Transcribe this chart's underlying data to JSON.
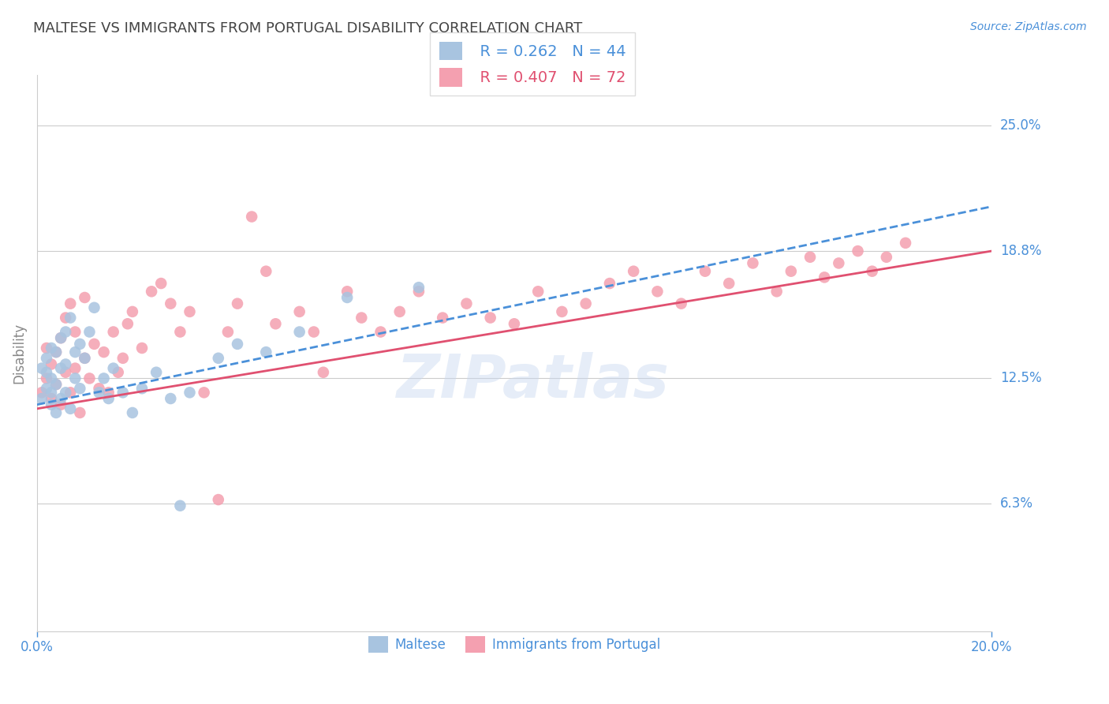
{
  "title": "MALTESE VS IMMIGRANTS FROM PORTUGAL DISABILITY CORRELATION CHART",
  "source": "Source: ZipAtlas.com",
  "ylabel": "Disability",
  "ytick_labels": [
    "25.0%",
    "18.8%",
    "12.5%",
    "6.3%"
  ],
  "ytick_values": [
    0.25,
    0.188,
    0.125,
    0.063
  ],
  "xtick_labels": [
    "0.0%",
    "20.0%"
  ],
  "xtick_values": [
    0.0,
    0.2
  ],
  "xmin": 0.0,
  "xmax": 0.2,
  "ymin": 0.0,
  "ymax": 0.275,
  "legend_r1": "R = 0.262",
  "legend_n1": "N = 44",
  "legend_r2": "R = 0.407",
  "legend_n2": "N = 72",
  "maltese_color": "#a8c4e0",
  "portugal_color": "#f4a0b0",
  "maltese_line_color": "#4a90d9",
  "portugal_line_color": "#e05070",
  "axis_color": "#888888",
  "grid_color": "#cccccc",
  "label_color": "#4a90d9",
  "title_color": "#444444",
  "maltese_x": [
    0.001,
    0.001,
    0.002,
    0.002,
    0.002,
    0.003,
    0.003,
    0.003,
    0.003,
    0.004,
    0.004,
    0.004,
    0.005,
    0.005,
    0.005,
    0.006,
    0.006,
    0.006,
    0.007,
    0.007,
    0.008,
    0.008,
    0.009,
    0.009,
    0.01,
    0.011,
    0.012,
    0.013,
    0.014,
    0.015,
    0.016,
    0.018,
    0.02,
    0.022,
    0.025,
    0.028,
    0.03,
    0.032,
    0.038,
    0.042,
    0.048,
    0.055,
    0.065,
    0.08
  ],
  "maltese_y": [
    0.115,
    0.13,
    0.12,
    0.128,
    0.135,
    0.112,
    0.118,
    0.125,
    0.14,
    0.108,
    0.122,
    0.138,
    0.115,
    0.13,
    0.145,
    0.118,
    0.132,
    0.148,
    0.11,
    0.155,
    0.125,
    0.138,
    0.12,
    0.142,
    0.135,
    0.148,
    0.16,
    0.118,
    0.125,
    0.115,
    0.13,
    0.118,
    0.108,
    0.12,
    0.128,
    0.115,
    0.062,
    0.118,
    0.135,
    0.142,
    0.138,
    0.148,
    0.165,
    0.17
  ],
  "portugal_x": [
    0.001,
    0.002,
    0.002,
    0.003,
    0.003,
    0.004,
    0.004,
    0.005,
    0.005,
    0.006,
    0.006,
    0.007,
    0.007,
    0.008,
    0.008,
    0.009,
    0.01,
    0.01,
    0.011,
    0.012,
    0.013,
    0.014,
    0.015,
    0.016,
    0.017,
    0.018,
    0.019,
    0.02,
    0.022,
    0.024,
    0.026,
    0.028,
    0.03,
    0.032,
    0.035,
    0.038,
    0.04,
    0.042,
    0.045,
    0.048,
    0.05,
    0.055,
    0.058,
    0.06,
    0.065,
    0.068,
    0.072,
    0.076,
    0.08,
    0.085,
    0.09,
    0.095,
    0.1,
    0.105,
    0.11,
    0.115,
    0.12,
    0.125,
    0.13,
    0.135,
    0.14,
    0.145,
    0.15,
    0.155,
    0.158,
    0.162,
    0.165,
    0.168,
    0.172,
    0.175,
    0.178,
    0.182
  ],
  "portugal_y": [
    0.118,
    0.125,
    0.14,
    0.115,
    0.132,
    0.122,
    0.138,
    0.112,
    0.145,
    0.128,
    0.155,
    0.118,
    0.162,
    0.13,
    0.148,
    0.108,
    0.135,
    0.165,
    0.125,
    0.142,
    0.12,
    0.138,
    0.118,
    0.148,
    0.128,
    0.135,
    0.152,
    0.158,
    0.14,
    0.168,
    0.172,
    0.162,
    0.148,
    0.158,
    0.118,
    0.065,
    0.148,
    0.162,
    0.205,
    0.178,
    0.152,
    0.158,
    0.148,
    0.128,
    0.168,
    0.155,
    0.148,
    0.158,
    0.168,
    0.155,
    0.162,
    0.155,
    0.152,
    0.168,
    0.158,
    0.162,
    0.172,
    0.178,
    0.168,
    0.162,
    0.178,
    0.172,
    0.182,
    0.168,
    0.178,
    0.185,
    0.175,
    0.182,
    0.188,
    0.178,
    0.185,
    0.192
  ],
  "regression_maltese_x0": 0.0,
  "regression_maltese_x1": 0.2,
  "regression_maltese_y0": 0.112,
  "regression_maltese_y1": 0.21,
  "regression_portugal_x0": 0.0,
  "regression_portugal_x1": 0.2,
  "regression_portugal_y0": 0.11,
  "regression_portugal_y1": 0.188
}
